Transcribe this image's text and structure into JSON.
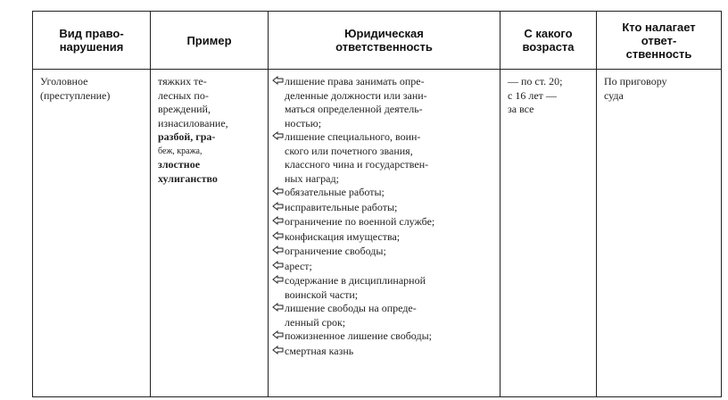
{
  "table": {
    "header": [
      [
        "Вид право-",
        "нарушения"
      ],
      [
        "Пример"
      ],
      [
        "Юридическая",
        "ответственность"
      ],
      [
        "С какого",
        "возраста"
      ],
      [
        "Кто налагает",
        "ответ-",
        "ственность"
      ]
    ],
    "row": {
      "offense": [
        "Уголовное",
        "(преступление)"
      ],
      "examples": [
        "тяжких те-",
        "лесных по-",
        "вреждений,",
        "изнасилование,",
        "разбой, гра-",
        "беж, кража,",
        "злостное",
        "хулиганство"
      ],
      "liability": [
        [
          "лишение права занимать опре-",
          "деленные должности или зани-",
          "маться определенной деятель-",
          "ностью;"
        ],
        [
          "лишение специального, воин-",
          "ского или почетного звания,",
          "классного чина и государствен-",
          "ных наград;"
        ],
        [
          "обязательные работы;"
        ],
        [
          "исправительные работы;"
        ],
        [
          "ограничение по военной службе;"
        ],
        [
          "конфискация имущества;"
        ],
        [
          "ограничение свободы;"
        ],
        [
          "арест;"
        ],
        [
          "содержание в дисциплинарной",
          "воинской части;"
        ],
        [
          "лишение свободы на опреде-",
          "ленный срок;"
        ],
        [
          "пожизненное лишение свободы;"
        ],
        [
          "смертная казнь"
        ]
      ],
      "age": [
        "— по ст. 20;",
        "с 16 лет —",
        "за все"
      ],
      "authority": [
        "По приговору",
        "суда"
      ]
    }
  }
}
